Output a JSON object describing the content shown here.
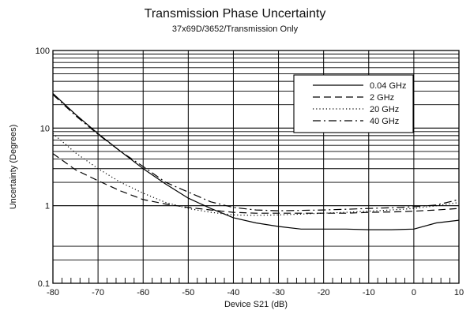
{
  "chart_data": {
    "type": "line",
    "title": "Transmission Phase Uncertainty",
    "subtitle": "37x69D/3652/Transmission Only",
    "xlabel": "Device S21 (dB)",
    "ylabel": "Uncertainty (Degrees)",
    "xlim": [
      -80,
      10
    ],
    "ylim": [
      0.1,
      100
    ],
    "yscale": "log",
    "grid": true,
    "legend_position": "top-right",
    "x_ticks": [
      -80,
      -70,
      -60,
      -50,
      -40,
      -30,
      -20,
      -10,
      0,
      10
    ],
    "y_ticks": [
      0.1,
      1,
      10,
      100
    ],
    "x_tick_labels": [
      "-80",
      "-70",
      "-60",
      "-50",
      "-40",
      "-30",
      "-20",
      "-10",
      "0",
      "10"
    ],
    "y_tick_labels": [
      "0.1",
      "1",
      "10",
      "100"
    ],
    "x": [
      -80,
      -75,
      -70,
      -65,
      -60,
      -55,
      -50,
      -45,
      -40,
      -35,
      -30,
      -25,
      -20,
      -15,
      -10,
      -5,
      0,
      5,
      10
    ],
    "series": [
      {
        "name": "0.04 GHz",
        "dash": "solid",
        "values": [
          28,
          15,
          8.5,
          5,
          3.0,
          1.9,
          1.25,
          0.92,
          0.7,
          0.6,
          0.54,
          0.5,
          0.5,
          0.5,
          0.49,
          0.49,
          0.5,
          0.6,
          0.65
        ]
      },
      {
        "name": "2 GHz",
        "dash": "dashed",
        "values": [
          4.7,
          2.9,
          2.1,
          1.55,
          1.2,
          1.05,
          0.95,
          0.88,
          0.82,
          0.8,
          0.8,
          0.8,
          0.8,
          0.8,
          0.82,
          0.83,
          0.85,
          0.88,
          0.92
        ]
      },
      {
        "name": "20 GHz",
        "dash": "dotted",
        "values": [
          8.5,
          4.8,
          3.0,
          2.0,
          1.45,
          1.1,
          0.92,
          0.82,
          0.76,
          0.75,
          0.76,
          0.78,
          0.8,
          0.82,
          0.85,
          0.88,
          0.92,
          1.0,
          1.1
        ]
      },
      {
        "name": "40 GHz",
        "dash": "dashdot",
        "values": [
          27,
          14.5,
          8.3,
          5.0,
          3.2,
          2.0,
          1.5,
          1.12,
          0.95,
          0.88,
          0.86,
          0.87,
          0.88,
          0.9,
          0.92,
          0.94,
          0.97,
          1.02,
          1.2
        ]
      }
    ]
  }
}
